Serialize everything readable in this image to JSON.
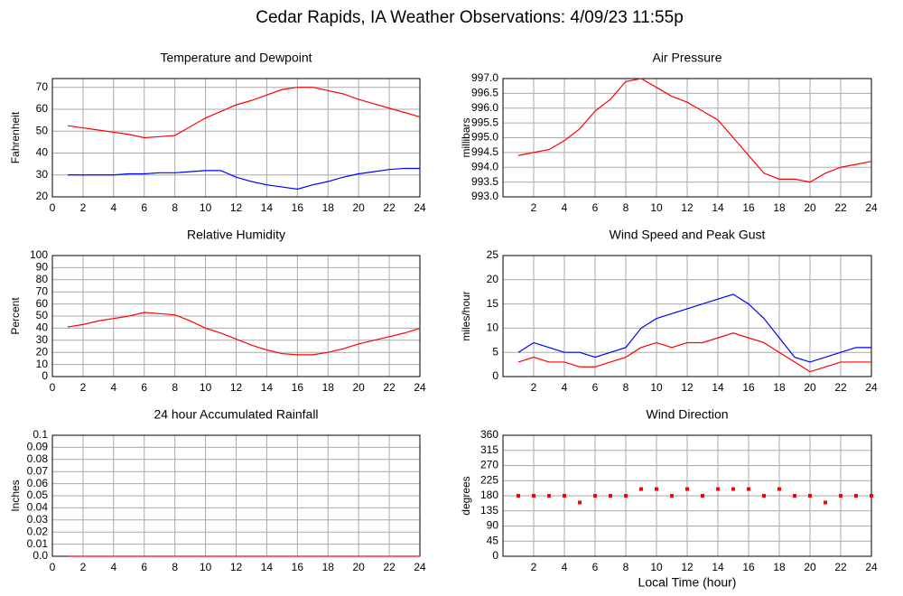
{
  "title": "Cedar Rapids, IA Weather Observations: 4/09/23 11:55p",
  "chart_data": [
    {
      "type": "line",
      "title": "Temperature and Dewpoint",
      "ylabel": "Fahrenheit",
      "x": [
        1,
        2,
        3,
        4,
        5,
        6,
        7,
        8,
        9,
        10,
        11,
        12,
        13,
        14,
        15,
        16,
        17,
        18,
        19,
        20,
        21,
        22,
        23,
        24
      ],
      "series": [
        {
          "color": "#ff0000",
          "values": [
            52.5,
            51.5,
            50.5,
            49.5,
            48.5,
            47,
            47.5,
            48,
            52,
            56,
            59,
            62,
            64,
            66.5,
            69,
            70,
            70,
            68.5,
            67,
            64.5,
            62.5,
            60.5,
            58.5,
            56.5
          ]
        },
        {
          "color": "#0000ff",
          "values": [
            30,
            30,
            30,
            30,
            30.5,
            30.5,
            31,
            31,
            31.5,
            32,
            32,
            29,
            27,
            25.5,
            24.5,
            23.5,
            25.5,
            27,
            29,
            30.5,
            31.5,
            32.5,
            33,
            33
          ]
        }
      ],
      "xlim": [
        0,
        24
      ],
      "ylim": [
        20,
        74
      ],
      "xticks": [
        0,
        2,
        4,
        6,
        8,
        10,
        12,
        14,
        16,
        18,
        20,
        22,
        24
      ],
      "yticks": [
        20,
        30,
        40,
        50,
        60,
        70
      ],
      "grid": true
    },
    {
      "type": "line",
      "title": "Air Pressure",
      "ylabel": "millibars",
      "x": [
        1,
        2,
        3,
        4,
        5,
        6,
        7,
        8,
        9,
        10,
        11,
        12,
        13,
        14,
        15,
        16,
        17,
        18,
        19,
        20,
        21,
        22,
        23,
        24
      ],
      "series": [
        {
          "color": "#ff0000",
          "values": [
            994.4,
            994.5,
            994.6,
            994.9,
            995.3,
            995.9,
            996.3,
            996.9,
            997.0,
            996.7,
            996.4,
            996.2,
            995.9,
            995.6,
            995.0,
            994.4,
            993.8,
            993.6,
            993.6,
            993.5,
            993.8,
            994.0,
            994.1,
            994.2
          ]
        }
      ],
      "xlim": [
        0,
        24
      ],
      "ylim": [
        993,
        997
      ],
      "xticks": [
        2,
        4,
        6,
        8,
        10,
        12,
        14,
        16,
        18,
        20,
        22,
        24
      ],
      "yticks": [
        {
          "value": 993,
          "label": "993.0"
        },
        993.5,
        {
          "value": 994,
          "label": "994.0"
        },
        994.5,
        {
          "value": 995,
          "label": "995.0"
        },
        995.5,
        {
          "value": 996,
          "label": "996.0"
        },
        996.5,
        {
          "value": 997,
          "label": "997.0"
        }
      ],
      "grid": true
    },
    {
      "type": "line",
      "title": "Relative Humidity",
      "ylabel": "Percent",
      "x": [
        1,
        2,
        3,
        4,
        5,
        6,
        7,
        8,
        9,
        10,
        11,
        12,
        13,
        14,
        15,
        16,
        17,
        18,
        19,
        20,
        21,
        22,
        23,
        24
      ],
      "series": [
        {
          "color": "#ff0000",
          "values": [
            41,
            43,
            46,
            48,
            50,
            53,
            52,
            51,
            46,
            40,
            36,
            31,
            26,
            22,
            19,
            18,
            18,
            20,
            23,
            27,
            30,
            33,
            36,
            40
          ]
        }
      ],
      "xlim": [
        0,
        24
      ],
      "ylim": [
        0,
        100
      ],
      "xticks": [
        0,
        2,
        4,
        6,
        8,
        10,
        12,
        14,
        16,
        18,
        20,
        22,
        24
      ],
      "yticks": [
        0,
        10,
        20,
        30,
        40,
        50,
        60,
        70,
        80,
        90,
        100
      ],
      "grid": true
    },
    {
      "type": "line",
      "title": "Wind Speed and Peak Gust",
      "ylabel": "miles/hour",
      "x": [
        1,
        2,
        3,
        4,
        5,
        6,
        7,
        8,
        9,
        10,
        11,
        12,
        13,
        14,
        15,
        16,
        17,
        18,
        19,
        20,
        21,
        22,
        23,
        24
      ],
      "series": [
        {
          "color": "#0000ff",
          "values": [
            5,
            7,
            6,
            5,
            5,
            4,
            5,
            6,
            10,
            12,
            13,
            14,
            15,
            16,
            17,
            15,
            12,
            8,
            4,
            3,
            4,
            5,
            6,
            6
          ]
        },
        {
          "color": "#ff0000",
          "values": [
            3,
            4,
            3,
            3,
            2,
            2,
            3,
            4,
            6,
            7,
            6,
            7,
            7,
            8,
            9,
            8,
            7,
            5,
            3,
            1,
            2,
            3,
            3,
            3
          ]
        }
      ],
      "xlim": [
        0,
        24
      ],
      "ylim": [
        0,
        25
      ],
      "xticks": [
        2,
        4,
        6,
        8,
        10,
        12,
        14,
        16,
        18,
        20,
        22,
        24
      ],
      "yticks": [
        0,
        5,
        10,
        15,
        20,
        25
      ],
      "grid": true
    },
    {
      "type": "line",
      "title": "24 hour Accumulated Rainfall",
      "ylabel": "Inches",
      "x": [
        1,
        2,
        3,
        4,
        5,
        6,
        7,
        8,
        9,
        10,
        11,
        12,
        13,
        14,
        15,
        16,
        17,
        18,
        19,
        20,
        21,
        22,
        23,
        24
      ],
      "series": [
        {
          "color": "#ff0000",
          "values": [
            0,
            0,
            0,
            0,
            0,
            0,
            0,
            0,
            0,
            0,
            0,
            0,
            0,
            0,
            0,
            0,
            0,
            0,
            0,
            0,
            0,
            0,
            0,
            0
          ]
        }
      ],
      "xlim": [
        0,
        24
      ],
      "ylim": [
        0,
        0.1
      ],
      "xticks": [
        0,
        2,
        4,
        6,
        8,
        10,
        12,
        14,
        16,
        18,
        20,
        22,
        24
      ],
      "yticks": [
        {
          "value": 0,
          "label": "0.0"
        },
        0.01,
        0.02,
        0.03,
        0.04,
        0.05,
        0.06,
        0.07,
        0.08,
        0.09,
        0.1
      ],
      "grid": true
    },
    {
      "type": "scatter",
      "title": "Wind Direction",
      "ylabel": "degrees",
      "xlabel": "Local Time (hour)",
      "x": [
        1,
        2,
        3,
        4,
        5,
        6,
        7,
        8,
        9,
        10,
        11,
        12,
        13,
        14,
        15,
        16,
        17,
        18,
        19,
        20,
        21,
        22,
        23,
        24
      ],
      "series": [
        {
          "color": "#ff0000",
          "values": [
            180,
            180,
            180,
            180,
            160,
            180,
            180,
            180,
            200,
            200,
            180,
            200,
            180,
            200,
            200,
            200,
            180,
            200,
            180,
            180,
            160,
            180,
            180,
            180
          ]
        }
      ],
      "xlim": [
        0,
        24
      ],
      "ylim": [
        0,
        360
      ],
      "xticks": [
        2,
        4,
        6,
        8,
        10,
        12,
        14,
        16,
        18,
        20,
        22,
        24
      ],
      "yticks": [
        0,
        45,
        90,
        135,
        180,
        225,
        270,
        315,
        360
      ],
      "grid": true
    }
  ]
}
